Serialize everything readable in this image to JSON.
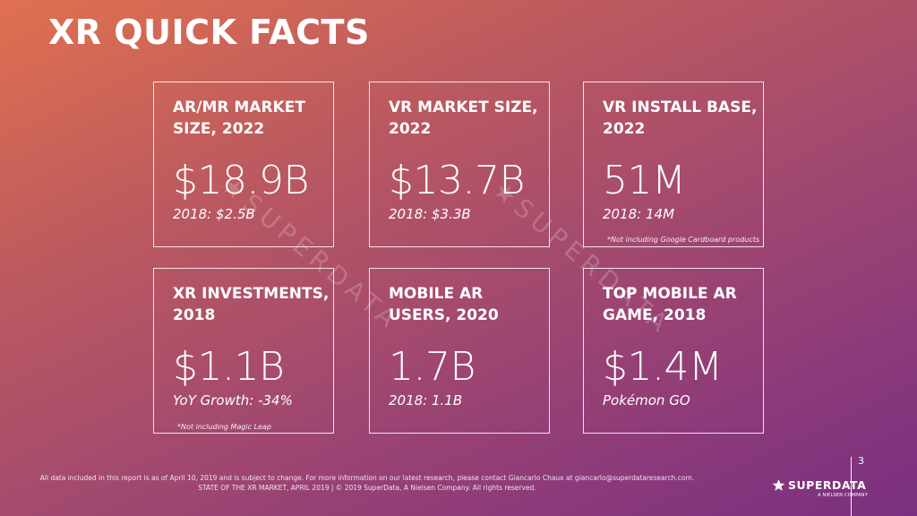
{
  "title": "XR QUICK FACTS",
  "cards": [
    {
      "heading": "AR/MR MARKET SIZE, 2022",
      "value": "$18.9B",
      "sub": "2018: $2.5B",
      "note": ""
    },
    {
      "heading": "VR MARKET SIZE, 2022",
      "value": "$13.7B",
      "sub": "2018: $3.3B",
      "note": ""
    },
    {
      "heading": "VR INSTALL BASE, 2022",
      "value": "51M",
      "sub": "2018: 14M",
      "note": "*Not including Google Cardboard products"
    },
    {
      "heading": "XR INVESTMENTS, 2018",
      "value": "$1.1B",
      "sub": "YoY Growth: -34%",
      "note": "*Not including Magic Leap"
    },
    {
      "heading": "MOBILE AR USERS, 2020",
      "value": "1.7B",
      "sub": "2018: 1.1B",
      "note": ""
    },
    {
      "heading": "TOP MOBILE AR GAME, 2018",
      "value": "$1.4M",
      "sub": "Pokémon GO",
      "note": ""
    }
  ],
  "watermark": "SUPERDATA",
  "footer": {
    "line1": "All data included in this report is as of April 10, 2019 and is subject to change. For more information on our latest research, please contact Giancarlo Chaux at giancarlo@superdataresearch.com.",
    "line2": "STATE OF THE XR MARKET, APRIL 2019  |  © 2019 SuperData, A Nielsen Company. All rights reserved."
  },
  "page_number": "3",
  "brand": {
    "name": "SUPERDATA",
    "tagline": "A NIELSEN COMPANY",
    "icon": "star-icon"
  },
  "colors": {
    "gradient_start": "#e0704f",
    "gradient_end": "#7a2f80",
    "text": "#ffffff"
  }
}
